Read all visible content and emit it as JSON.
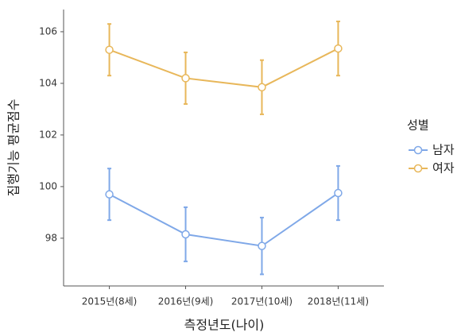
{
  "chart_data": {
    "type": "line",
    "categories": [
      "2015년(8세)",
      "2016년(9세)",
      "2017년(10세)",
      "2018년(11세)"
    ],
    "x_label": "측정년도(나이)",
    "y_label": "집행기능 평균점수",
    "legend_title": "성별",
    "series": [
      {
        "name": "남자",
        "color": "#7fa8e8",
        "values": [
          99.7,
          98.15,
          97.7,
          99.75
        ],
        "errors": [
          1.0,
          1.05,
          1.1,
          1.05
        ]
      },
      {
        "name": "여자",
        "color": "#e8b75a",
        "values": [
          105.3,
          104.2,
          103.85,
          105.35
        ],
        "errors": [
          1.0,
          1.0,
          1.05,
          1.05
        ]
      }
    ],
    "ylim": [
      96.15,
      106.86
    ],
    "yticks": [
      98,
      100,
      102,
      104,
      106
    ]
  }
}
